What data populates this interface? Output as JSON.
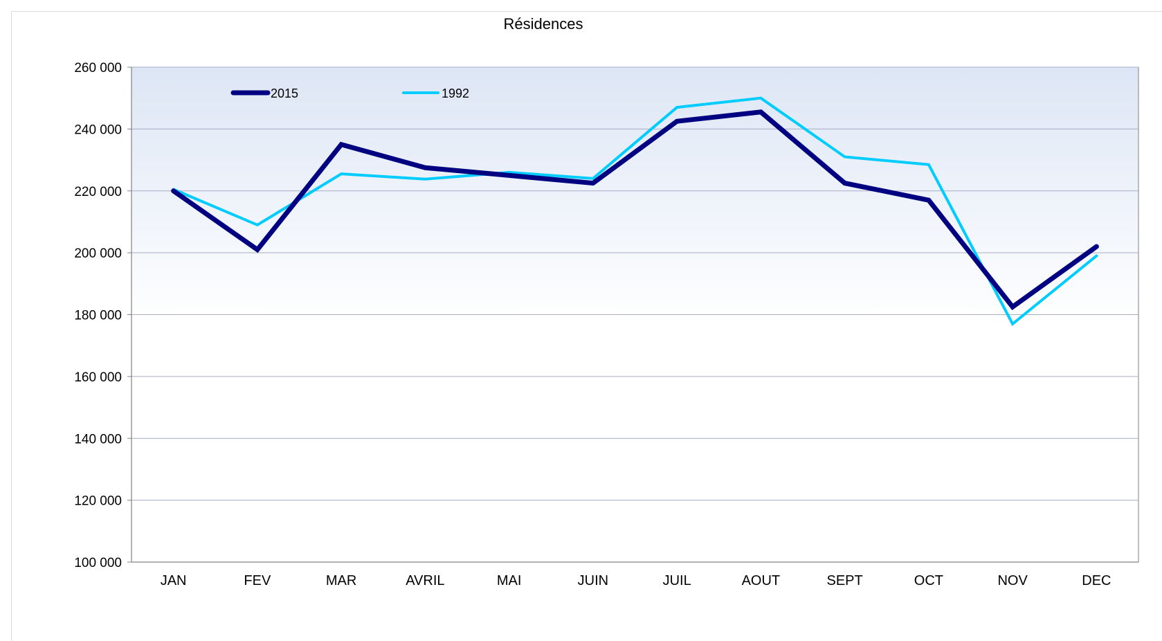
{
  "chart_data": {
    "type": "line",
    "title": "Résidences",
    "xlabel": "",
    "ylabel": "",
    "categories": [
      "JAN",
      "FEV",
      "MAR",
      "AVRIL",
      "MAI",
      "JUIN",
      "JUIL",
      "AOUT",
      "SEPT",
      "OCT",
      "NOV",
      "DEC"
    ],
    "ylim": [
      100000,
      260000
    ],
    "yticks": [
      100000,
      120000,
      140000,
      160000,
      180000,
      200000,
      220000,
      240000,
      260000
    ],
    "ytick_labels": [
      "100 000",
      "120 000",
      "140 000",
      "160 000",
      "180 000",
      "200 000",
      "220 000",
      "240 000",
      "260 000"
    ],
    "grid": true,
    "legend_position": "top-left",
    "series": [
      {
        "name": "2015",
        "color": "#000080",
        "values": [
          220000,
          201000,
          235000,
          227500,
          225000,
          222500,
          242500,
          245500,
          222500,
          217000,
          182500,
          202000
        ]
      },
      {
        "name": "1992",
        "color": "#00ccff",
        "values": [
          220500,
          209000,
          225500,
          223800,
          226000,
          224000,
          247000,
          250000,
          231000,
          228500,
          177000,
          199000
        ]
      }
    ],
    "colors": {
      "plot_gradient_top": "#dde6f5",
      "plot_gradient_bottom": "#ffffff",
      "gridline": "#a6aec4",
      "axis": "#808080"
    }
  }
}
